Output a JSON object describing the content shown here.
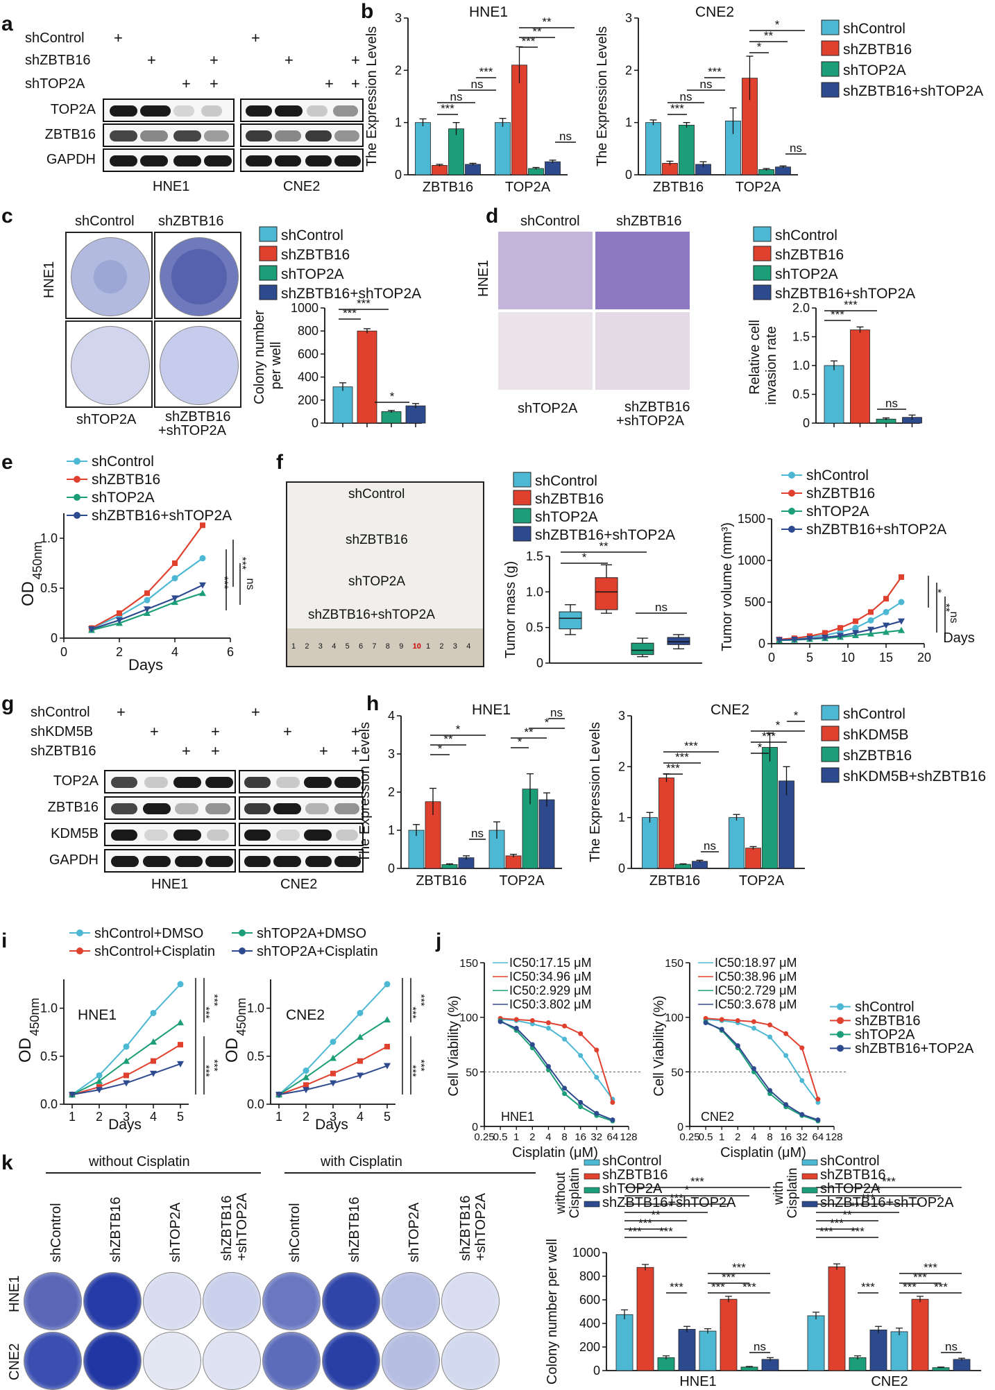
{
  "colors": {
    "c1": "#4db8d3",
    "c2": "#e0402e",
    "c3": "#1c9e78",
    "c4": "#2e4a8f"
  },
  "panels": {
    "a": "a",
    "b": "b",
    "c": "c",
    "d": "d",
    "e": "e",
    "f": "f",
    "g": "g",
    "h": "h",
    "i": "i",
    "j": "j",
    "k": "k"
  },
  "panel_a": {
    "rows": [
      "shControl",
      "shZBTB16",
      "shTOP2A"
    ],
    "bands": [
      "TOP2A",
      "ZBTB16",
      "GAPDH"
    ],
    "cells": [
      "HNE1",
      "CNE2"
    ],
    "plus": "+"
  },
  "panel_b": {
    "ylabel": "The Expression Levels",
    "categories": [
      "ZBTB16",
      "TOP2A"
    ],
    "legend": [
      "shControl",
      "shZBTB16",
      "shTOP2A",
      "shZBTB16+shTOP2A"
    ],
    "yticks": [
      "0",
      "1",
      "2",
      "3"
    ],
    "sig": [
      "***",
      "ns",
      "**",
      "*",
      "ns"
    ]
  },
  "panel_c": {
    "labels": [
      "shControl",
      "shZBTB16",
      "shTOP2A",
      "shZBTB16",
      "+shTOP2A"
    ],
    "cell": "HNE1",
    "legend": [
      "shControl",
      "shZBTB16",
      "shTOP2A",
      "shZBTB16+shTOP2A"
    ],
    "ylabel1": "Colony number",
    "ylabel2": "per well",
    "yticks": [
      "0",
      "200",
      "400",
      "600",
      "800",
      "1000"
    ],
    "sig": [
      "***",
      "***",
      "*"
    ]
  },
  "panel_d": {
    "labels": [
      "shControl",
      "shZBTB16",
      "shTOP2A",
      "shZBTB16",
      "+shTOP2A"
    ],
    "cell": "HNE1",
    "legend": [
      "shControl",
      "shZBTB16",
      "shTOP2A",
      "shZBTB16+shTOP2A"
    ],
    "ylabel1": "Relative cell",
    "ylabel2": "invasion rate",
    "yticks": [
      "0",
      "0.5",
      "1.0",
      "1.5",
      "2.0"
    ],
    "sig": [
      "***",
      "***",
      "ns"
    ]
  },
  "panel_e": {
    "legend": [
      "shControl",
      "shZBTB16",
      "shTOP2A",
      "shZBTB16+shTOP2A"
    ],
    "ylabel": "OD",
    "ylabel_sub": "450nm",
    "xlabel": "Days",
    "xticks": [
      "0",
      "2",
      "4",
      "6"
    ],
    "yticks": [
      "0",
      "0.5",
      "1.0"
    ],
    "sig": [
      "***",
      "***",
      "ns"
    ]
  },
  "panel_f": {
    "photo_labels": [
      "shControl",
      "shZBTB16",
      "shTOP2A",
      "shZBTB16+shTOP2A"
    ],
    "ruler": [
      "1",
      "2",
      "3",
      "4",
      "5",
      "6",
      "7",
      "8",
      "9",
      "10",
      "1",
      "2",
      "3",
      "4"
    ],
    "legend": [
      "shControl",
      "shZBTB16",
      "shTOP2A",
      "shZBTB16+shTOP2A"
    ],
    "mass_ylabel": "Tumor mass (g)",
    "mass_yticks": [
      "0",
      "0.5",
      "1.0",
      "1.5"
    ],
    "mass_sig": [
      "*",
      "**",
      "ns"
    ],
    "vol_legend": [
      "shControl",
      "shZBTB16",
      "shTOP2A",
      "shZBTB16+shTOP2A"
    ],
    "vol_ylabel": "Tumor volume (mm³)",
    "vol_yticks": [
      "0",
      "500",
      "1000",
      "1500"
    ],
    "vol_xticks": [
      "0",
      "5",
      "10",
      "15",
      "20"
    ],
    "vol_xlabel": "Days",
    "vol_sig": [
      "*",
      "**",
      "ns"
    ]
  },
  "panel_g": {
    "rows": [
      "shControl",
      "shKDM5B",
      "shZBTB16"
    ],
    "bands": [
      "TOP2A",
      "ZBTB16",
      "KDM5B",
      "GAPDH"
    ],
    "cells": [
      "HNE1",
      "CNE2"
    ],
    "plus": "+"
  },
  "panel_h": {
    "ylabel": "The Expression Levels",
    "categories": [
      "ZBTB16",
      "TOP2A"
    ],
    "legend": [
      "shControl",
      "shKDM5B",
      "shZBTB16",
      "shKDM5B+shZBTB16"
    ],
    "yticks": [
      "0",
      "1",
      "2",
      "3",
      "4"
    ],
    "yticks2": [
      "0",
      "1",
      "2",
      "3"
    ],
    "sig": [
      "*",
      "**",
      "*",
      "ns",
      "***"
    ]
  },
  "panel_i": {
    "legend": [
      "shControl+DMSO",
      "shControl+Cisplatin",
      "shTOP2A+DMSO",
      "shTOP2A+Cisplatin"
    ],
    "ylabel": "OD",
    "ylabel_sub": "450nm",
    "xlabel": "Days",
    "xticks": [
      "1",
      "2",
      "3",
      "4",
      "5"
    ],
    "yticks": [
      "0.0",
      "0.5",
      "1.0"
    ],
    "sig": [
      "***",
      "***",
      "***",
      "***"
    ]
  },
  "panel_j": {
    "hne1_ic50": [
      "IC50:17.15 μM",
      "IC50:34.96 μM",
      "IC50:2.929 μM",
      "IC50:3.802 μM"
    ],
    "cne2_ic50": [
      "IC50:18.97 μM",
      "IC50:38.96 μM",
      "IC50:2.729 μM",
      "IC50:3.678 μM"
    ],
    "legend": [
      "shControl",
      "shZBTB16",
      "shTOP2A",
      "shZBTB16+TOP2A"
    ],
    "ylabel": "Cell Viability (%)",
    "xlabel": "Cisplatin (μM)",
    "xticks": [
      "0.25",
      "0.5",
      "1",
      "2",
      "4",
      "8",
      "16",
      "32",
      "64",
      "128"
    ],
    "yticks": [
      "0",
      "50",
      "100",
      "150"
    ]
  },
  "panel_k": {
    "without": "without Cisplatin",
    "with": "with Cisplatin",
    "groups": [
      "shControl",
      "shZBTB16",
      "shTOP2A",
      "shZBTB16\n+shTOP2A"
    ],
    "group_lines": [
      "shZBTB16",
      "+shTOP2A"
    ],
    "cells": [
      "HNE1",
      "CNE2"
    ],
    "legend": [
      "shControl",
      "shZBTB16",
      "shTOP2A",
      "shZBTB16+shTOP2A"
    ],
    "legend_title1": "without",
    "legend_title2": "Cisplatin",
    "legend_title3": "with",
    "ylabel": "Colony number per well",
    "yticks": [
      "0",
      "200",
      "400",
      "600",
      "800",
      "1000"
    ],
    "xcats": [
      "HNE1",
      "CNE2"
    ],
    "sig": [
      "***",
      "**",
      "*",
      "ns"
    ]
  },
  "chart_data": [
    {
      "id": "b-HNE1",
      "type": "bar",
      "title": "HNE1",
      "ylabel": "The Expression Levels",
      "categories": [
        "ZBTB16",
        "TOP2A"
      ],
      "ylim": [
        0,
        3
      ],
      "series": [
        {
          "name": "shControl",
          "values": [
            1.0,
            1.0
          ],
          "err": [
            0.07,
            0.08
          ]
        },
        {
          "name": "shZBTB16",
          "values": [
            0.18,
            2.1
          ],
          "err": [
            0.02,
            0.35
          ]
        },
        {
          "name": "shTOP2A",
          "values": [
            0.88,
            0.12
          ],
          "err": [
            0.12,
            0.02
          ]
        },
        {
          "name": "shZBTB16+shTOP2A",
          "values": [
            0.2,
            0.25
          ],
          "err": [
            0.02,
            0.03
          ]
        }
      ]
    },
    {
      "id": "b-CNE2",
      "type": "bar",
      "title": "CNE2",
      "ylabel": "The Expression Levels",
      "categories": [
        "ZBTB16",
        "TOP2A"
      ],
      "ylim": [
        0,
        3
      ],
      "series": [
        {
          "name": "shControl",
          "values": [
            1.0,
            1.03
          ],
          "err": [
            0.05,
            0.25
          ]
        },
        {
          "name": "shZBTB16",
          "values": [
            0.22,
            1.85
          ],
          "err": [
            0.04,
            0.42
          ]
        },
        {
          "name": "shTOP2A",
          "values": [
            0.95,
            0.1
          ],
          "err": [
            0.05,
            0.02
          ]
        },
        {
          "name": "shZBTB16+shTOP2A",
          "values": [
            0.2,
            0.15
          ],
          "err": [
            0.05,
            0.02
          ]
        }
      ]
    },
    {
      "id": "c",
      "type": "bar",
      "ylabel": "Colony number per well",
      "categories": [
        "shControl",
        "shZBTB16",
        "shTOP2A",
        "shZBTB16+shTOP2A"
      ],
      "ylim": [
        0,
        1000
      ],
      "values": [
        315,
        800,
        100,
        150
      ],
      "err": [
        35,
        20,
        10,
        20
      ]
    },
    {
      "id": "d",
      "type": "bar",
      "ylabel": "Relative cell invasion rate",
      "categories": [
        "shControl",
        "shZBTB16",
        "shTOP2A",
        "shZBTB16+shTOP2A"
      ],
      "ylim": [
        0,
        2.0
      ],
      "values": [
        1.0,
        1.62,
        0.07,
        0.1
      ],
      "err": [
        0.08,
        0.05,
        0.02,
        0.04
      ]
    },
    {
      "id": "e",
      "type": "line",
      "xlabel": "Days",
      "ylabel": "OD450nm",
      "x": [
        1,
        2,
        3,
        4,
        5
      ],
      "xlim": [
        0,
        6
      ],
      "ylim": [
        0,
        1.25
      ],
      "series": [
        {
          "name": "shControl",
          "values": [
            0.1,
            0.22,
            0.38,
            0.6,
            0.8
          ]
        },
        {
          "name": "shZBTB16",
          "values": [
            0.1,
            0.25,
            0.45,
            0.75,
            1.13
          ]
        },
        {
          "name": "shTOP2A",
          "values": [
            0.08,
            0.15,
            0.25,
            0.36,
            0.45
          ]
        },
        {
          "name": "shZBTB16+shTOP2A",
          "values": [
            0.09,
            0.18,
            0.29,
            0.4,
            0.53
          ]
        }
      ]
    },
    {
      "id": "f-mass",
      "type": "box",
      "ylabel": "Tumor mass (g)",
      "ylim": [
        0,
        1.5
      ],
      "categories": [
        "shControl",
        "shZBTB16",
        "shTOP2A",
        "shZBTB16+shTOP2A"
      ],
      "boxes": [
        {
          "min": 0.4,
          "q1": 0.48,
          "median": 0.63,
          "q3": 0.72,
          "max": 0.82
        },
        {
          "min": 0.7,
          "q1": 0.75,
          "median": 1.0,
          "q3": 1.2,
          "max": 1.38
        },
        {
          "min": 0.09,
          "q1": 0.12,
          "median": 0.18,
          "q3": 0.28,
          "max": 0.35
        },
        {
          "min": 0.2,
          "q1": 0.26,
          "median": 0.3,
          "q3": 0.36,
          "max": 0.4
        }
      ]
    },
    {
      "id": "f-volume",
      "type": "line",
      "xlabel": "Days",
      "ylabel": "Tumor volume (mm3)",
      "x": [
        1,
        3,
        5,
        7,
        9,
        11,
        13,
        15,
        17
      ],
      "xlim": [
        0,
        20
      ],
      "ylim": [
        0,
        1500
      ],
      "series": [
        {
          "name": "shControl",
          "values": [
            50,
            60,
            80,
            100,
            140,
            190,
            280,
            380,
            500
          ]
        },
        {
          "name": "shZBTB16",
          "values": [
            50,
            65,
            90,
            130,
            190,
            270,
            380,
            540,
            800
          ]
        },
        {
          "name": "shTOP2A",
          "values": [
            40,
            45,
            55,
            65,
            80,
            100,
            120,
            140,
            160
          ]
        },
        {
          "name": "shZBTB16+shTOP2A",
          "values": [
            45,
            50,
            60,
            75,
            95,
            130,
            170,
            220,
            270
          ]
        }
      ]
    },
    {
      "id": "h-HNE1",
      "type": "bar",
      "title": "HNE1",
      "ylabel": "The Expression Levels",
      "categories": [
        "ZBTB16",
        "TOP2A"
      ],
      "ylim": [
        0,
        4
      ],
      "series": [
        {
          "name": "shControl",
          "values": [
            1.0,
            1.0
          ],
          "err": [
            0.15,
            0.22
          ]
        },
        {
          "name": "shKDM5B",
          "values": [
            1.75,
            0.33
          ],
          "err": [
            0.35,
            0.04
          ]
        },
        {
          "name": "shZBTB16",
          "values": [
            0.1,
            2.08
          ],
          "err": [
            0.02,
            0.4
          ]
        },
        {
          "name": "shKDM5B+shZBTB16",
          "values": [
            0.28,
            1.8
          ],
          "err": [
            0.05,
            0.18
          ]
        }
      ]
    },
    {
      "id": "h-CNE2",
      "type": "bar",
      "title": "CNE2",
      "ylabel": "The Expression Levels",
      "categories": [
        "ZBTB16",
        "TOP2A"
      ],
      "ylim": [
        0,
        3
      ],
      "series": [
        {
          "name": "shControl",
          "values": [
            1.0,
            1.0
          ],
          "err": [
            0.1,
            0.06
          ]
        },
        {
          "name": "shKDM5B",
          "values": [
            1.78,
            0.4
          ],
          "err": [
            0.08,
            0.03
          ]
        },
        {
          "name": "shZBTB16",
          "values": [
            0.08,
            2.38
          ],
          "err": [
            0.01,
            0.28
          ]
        },
        {
          "name": "shKDM5B+shZBTB16",
          "values": [
            0.14,
            1.72
          ],
          "err": [
            0.02,
            0.28
          ]
        }
      ]
    },
    {
      "id": "i-HNE1",
      "type": "line",
      "title": "HNE1",
      "xlabel": "Days",
      "ylabel": "OD450nm",
      "x": [
        1,
        2,
        3,
        4,
        5
      ],
      "ylim": [
        0,
        1.3
      ],
      "series": [
        {
          "name": "shControl+DMSO",
          "values": [
            0.1,
            0.3,
            0.6,
            0.95,
            1.25
          ]
        },
        {
          "name": "shControl+Cisplatin",
          "values": [
            0.1,
            0.18,
            0.3,
            0.45,
            0.62
          ]
        },
        {
          "name": "shTOP2A+DMSO",
          "values": [
            0.1,
            0.24,
            0.45,
            0.65,
            0.85
          ]
        },
        {
          "name": "shTOP2A+Cisplatin",
          "values": [
            0.1,
            0.15,
            0.22,
            0.32,
            0.42
          ]
        }
      ]
    },
    {
      "id": "i-CNE2",
      "type": "line",
      "title": "CNE2",
      "xlabel": "Days",
      "ylabel": "OD450nm",
      "x": [
        1,
        2,
        3,
        4,
        5
      ],
      "ylim": [
        0,
        1.3
      ],
      "series": [
        {
          "name": "shControl+DMSO",
          "values": [
            0.1,
            0.35,
            0.65,
            0.95,
            1.25
          ]
        },
        {
          "name": "shControl+Cisplatin",
          "values": [
            0.1,
            0.2,
            0.32,
            0.45,
            0.6
          ]
        },
        {
          "name": "shTOP2A+DMSO",
          "values": [
            0.1,
            0.28,
            0.48,
            0.7,
            0.88
          ]
        },
        {
          "name": "shTOP2A+Cisplatin",
          "values": [
            0.1,
            0.15,
            0.22,
            0.3,
            0.4
          ]
        }
      ]
    },
    {
      "id": "j-HNE1",
      "type": "line",
      "title": "HNE1",
      "xlabel": "Cisplatin (μM)",
      "ylabel": "Cell Viability (%)",
      "x": [
        0.5,
        1,
        2,
        4,
        8,
        16,
        32,
        64
      ],
      "ylim": [
        0,
        150
      ],
      "series": [
        {
          "name": "shControl",
          "values": [
            98,
            97,
            94,
            90,
            80,
            65,
            45,
            25
          ]
        },
        {
          "name": "shZBTB16",
          "values": [
            99,
            98,
            97,
            95,
            92,
            85,
            70,
            22
          ]
        },
        {
          "name": "shTOP2A",
          "values": [
            97,
            88,
            72,
            52,
            30,
            18,
            10,
            5
          ]
        },
        {
          "name": "shZBTB16+TOP2A",
          "values": [
            96,
            90,
            75,
            55,
            35,
            22,
            12,
            6
          ]
        }
      ]
    },
    {
      "id": "j-CNE2",
      "type": "line",
      "title": "CNE2",
      "xlabel": "Cisplatin (μM)",
      "ylabel": "Cell Viability (%)",
      "x": [
        0.5,
        1,
        2,
        4,
        8,
        16,
        32,
        64
      ],
      "ylim": [
        0,
        150
      ],
      "series": [
        {
          "name": "shControl",
          "values": [
            98,
            97,
            95,
            90,
            82,
            65,
            42,
            22
          ]
        },
        {
          "name": "shZBTB16",
          "values": [
            99,
            98,
            97,
            96,
            93,
            85,
            72,
            25
          ]
        },
        {
          "name": "shTOP2A",
          "values": [
            96,
            88,
            72,
            50,
            30,
            18,
            10,
            5
          ]
        },
        {
          "name": "shZBTB16+TOP2A",
          "values": [
            95,
            89,
            74,
            53,
            33,
            20,
            11,
            6
          ]
        }
      ]
    },
    {
      "id": "k",
      "type": "bar",
      "ylabel": "Colony number per well",
      "categories": [
        "HNE1",
        "CNE2"
      ],
      "ylim": [
        0,
        1000
      ],
      "series": [
        {
          "name": "without Cisplatin shControl",
          "values": [
            475,
            465
          ],
          "err": [
            40,
            30
          ]
        },
        {
          "name": "without Cisplatin shZBTB16",
          "values": [
            875,
            880
          ],
          "err": [
            25,
            25
          ]
        },
        {
          "name": "without Cisplatin shTOP2A",
          "values": [
            110,
            110
          ],
          "err": [
            15,
            15
          ]
        },
        {
          "name": "without Cisplatin shZBTB16+shTOP2A",
          "values": [
            350,
            345
          ],
          "err": [
            25,
            30
          ]
        },
        {
          "name": "with Cisplatin shControl",
          "values": [
            335,
            330
          ],
          "err": [
            20,
            30
          ]
        },
        {
          "name": "with Cisplatin shZBTB16",
          "values": [
            605,
            605
          ],
          "err": [
            25,
            25
          ]
        },
        {
          "name": "with Cisplatin shTOP2A",
          "values": [
            30,
            25
          ],
          "err": [
            5,
            5
          ]
        },
        {
          "name": "with Cisplatin shZBTB16+shTOP2A",
          "values": [
            95,
            95
          ],
          "err": [
            15,
            10
          ]
        }
      ]
    }
  ]
}
